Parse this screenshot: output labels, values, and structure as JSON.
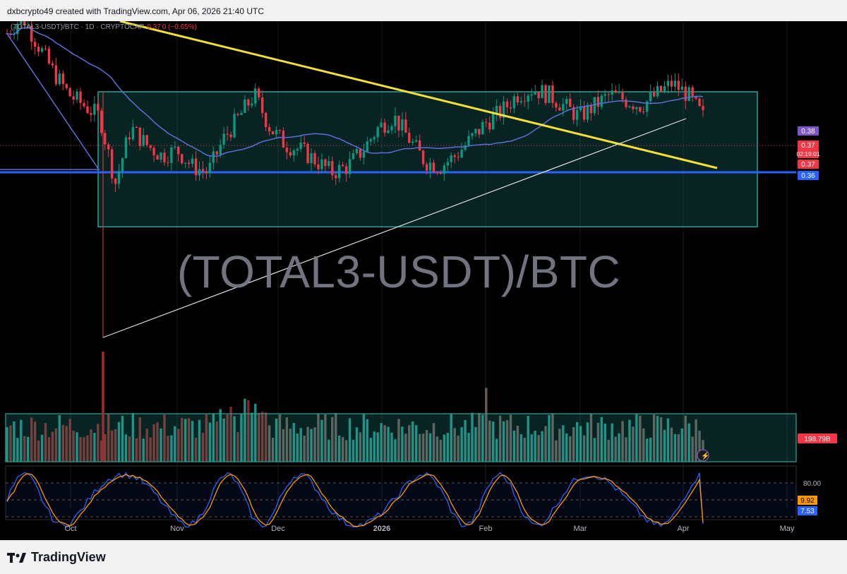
{
  "header": {
    "credit": "dxbcrypto49 created with TradingView.com, Apr 06, 2026 21:40 UTC"
  },
  "legend": {
    "symbol": "(TOTAL3-USDT)/BTC · 1D · CRYPTOCAP",
    "value": "0.37",
    "change": "0 (−0.65%)"
  },
  "watermark": "(TOTAL3-USDT)/BTC",
  "footer": {
    "brand": "TradingView"
  },
  "colors": {
    "up": "#089981",
    "down": "#f23645",
    "channel": "#26a69a",
    "trend_top": "#ffeb3b",
    "support": "#2962ff",
    "ma": "#5b6fd6",
    "stoch_k": "#2962ff",
    "stoch_d": "#ff9800"
  },
  "chart_data": {
    "type": "candlestick",
    "title": "(TOTAL3-USDT)/BTC · 1D · CRYPTOCAP",
    "x_ticks": [
      "Oct",
      "Nov",
      "Dec",
      "2026",
      "Feb",
      "Mar",
      "Apr",
      "May"
    ],
    "price_axis_labels": [
      {
        "text": "0.38",
        "color": "#7e57c2",
        "value": 0.38
      },
      {
        "text": "0.37",
        "color": "#f23645",
        "value": 0.37
      },
      {
        "text": "02:19:01",
        "color": "#f23645",
        "value": 0.37
      },
      {
        "text": "0.37",
        "color": "#f23645",
        "value": 0.368
      },
      {
        "text": "0.36",
        "color": "#2962ff",
        "value": 0.36
      }
    ],
    "ylim": [
      0.3,
      0.39
    ],
    "price_path_weekly": [
      0.385,
      0.388,
      0.383,
      0.378,
      0.374,
      0.372,
      0.37,
      0.358,
      0.368,
      0.365,
      0.363,
      0.364,
      0.361,
      0.36,
      0.366,
      0.37,
      0.374,
      0.368,
      0.365,
      0.364,
      0.362,
      0.36,
      0.361,
      0.364,
      0.368,
      0.37,
      0.366,
      0.362,
      0.361,
      0.363,
      0.366,
      0.369,
      0.371,
      0.374,
      0.375,
      0.374,
      0.372,
      0.37,
      0.372,
      0.374,
      0.373,
      0.372,
      0.374,
      0.376,
      0.374,
      0.37
    ],
    "annotations": {
      "channel_top": 0.3745,
      "channel_bottom": 0.355,
      "support_level": 0.36,
      "descending_trendline": {
        "start": [
          "Sep 2025",
          0.392
        ],
        "end": [
          "Apr 2026",
          0.361
        ]
      },
      "ascending_trendline": {
        "start": [
          "Oct 10 2025",
          0.33
        ],
        "end": [
          "Mar 31 2026",
          0.368
        ]
      }
    },
    "volume": {
      "last_label": "198.79B"
    },
    "stoch_rsi": {
      "levels": [
        80,
        50,
        20
      ],
      "k_label": "7.53",
      "d_label": "9.92",
      "visible_ticks": [
        "80.00"
      ]
    }
  }
}
